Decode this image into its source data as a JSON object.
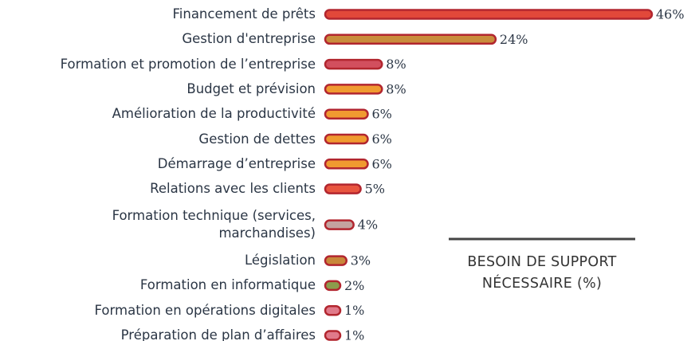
{
  "chart_data": {
    "type": "bar",
    "orientation": "horizontal",
    "title": "BESOIN DE SUPPORT NÉCESSAIRE (%)",
    "categories": [
      "Financement de prêts",
      "Gestion d'entreprise",
      "Formation et promotion de l’entreprise",
      "Budget et prévision",
      "Amélioration de la productivité",
      "Gestion de dettes",
      "Démarrage d’entreprise",
      "Relations avec les clients",
      "Formation technique (services, marchandises)",
      "Législation",
      "Formation en informatique",
      "Formation en opérations digitales",
      "Préparation de plan d’affaires"
    ],
    "values": [
      46,
      24,
      8,
      8,
      6,
      6,
      6,
      5,
      4,
      3,
      2,
      1,
      1
    ],
    "value_labels": [
      "46%",
      "24%",
      "8%",
      "8%",
      "6%",
      "6%",
      "6%",
      "5%",
      "4%",
      "3%",
      "2%",
      "1%",
      "1%"
    ],
    "colors": [
      "#e2483a",
      "#c98c3c",
      "#d24f5e",
      "#f09a30",
      "#f09a30",
      "#f09a30",
      "#f09a30",
      "#e8553f",
      "#c4a39f",
      "#c8873a",
      "#8c9c4c",
      "#e07a8a",
      "#e07a8a"
    ],
    "outline_color": "#b2262f"
  }
}
